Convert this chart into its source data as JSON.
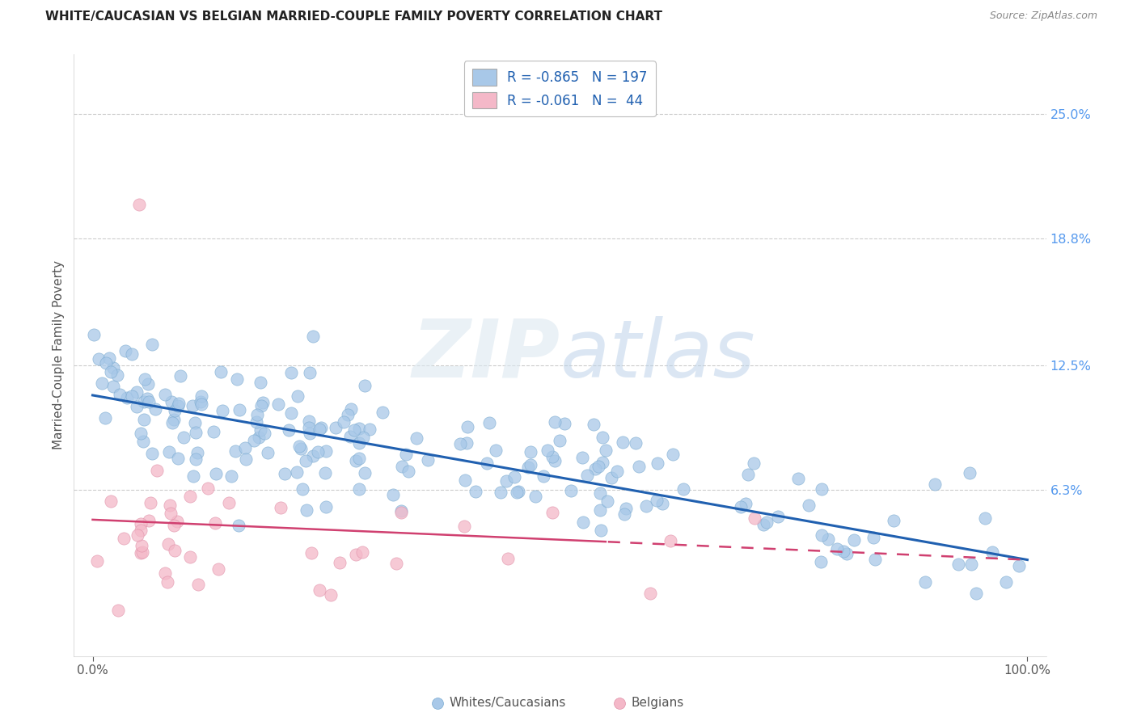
{
  "title": "WHITE/CAUCASIAN VS BELGIAN MARRIED-COUPLE FAMILY POVERTY CORRELATION CHART",
  "source": "Source: ZipAtlas.com",
  "ylabel": "Married-Couple Family Poverty",
  "ytick_labels": [
    "25.0%",
    "18.8%",
    "12.5%",
    "6.3%"
  ],
  "ytick_values": [
    25.0,
    18.8,
    12.5,
    6.3
  ],
  "watermark_zip": "ZIP",
  "watermark_atlas": "atlas",
  "blue_color": "#a8c8e8",
  "pink_color": "#f4b8c8",
  "blue_line_color": "#2060b0",
  "pink_line_color": "#d04070",
  "legend_label1": "R = -0.865   N = 197",
  "legend_label2": "R = -0.061   N =  44",
  "bottom_legend1": "Whites/Caucasians",
  "bottom_legend2": "Belgians",
  "blue_trend_y0": 11.0,
  "blue_trend_y1": 2.8,
  "pink_trend_y0": 4.8,
  "pink_trend_y1": 2.8,
  "pink_solid_end": 55,
  "xlim": [
    -2,
    102
  ],
  "ylim": [
    -2,
    28
  ],
  "grid_color": "#cccccc",
  "title_color": "#222222",
  "source_color": "#888888",
  "tick_color": "#555555",
  "ytick_color": "#5599ee"
}
